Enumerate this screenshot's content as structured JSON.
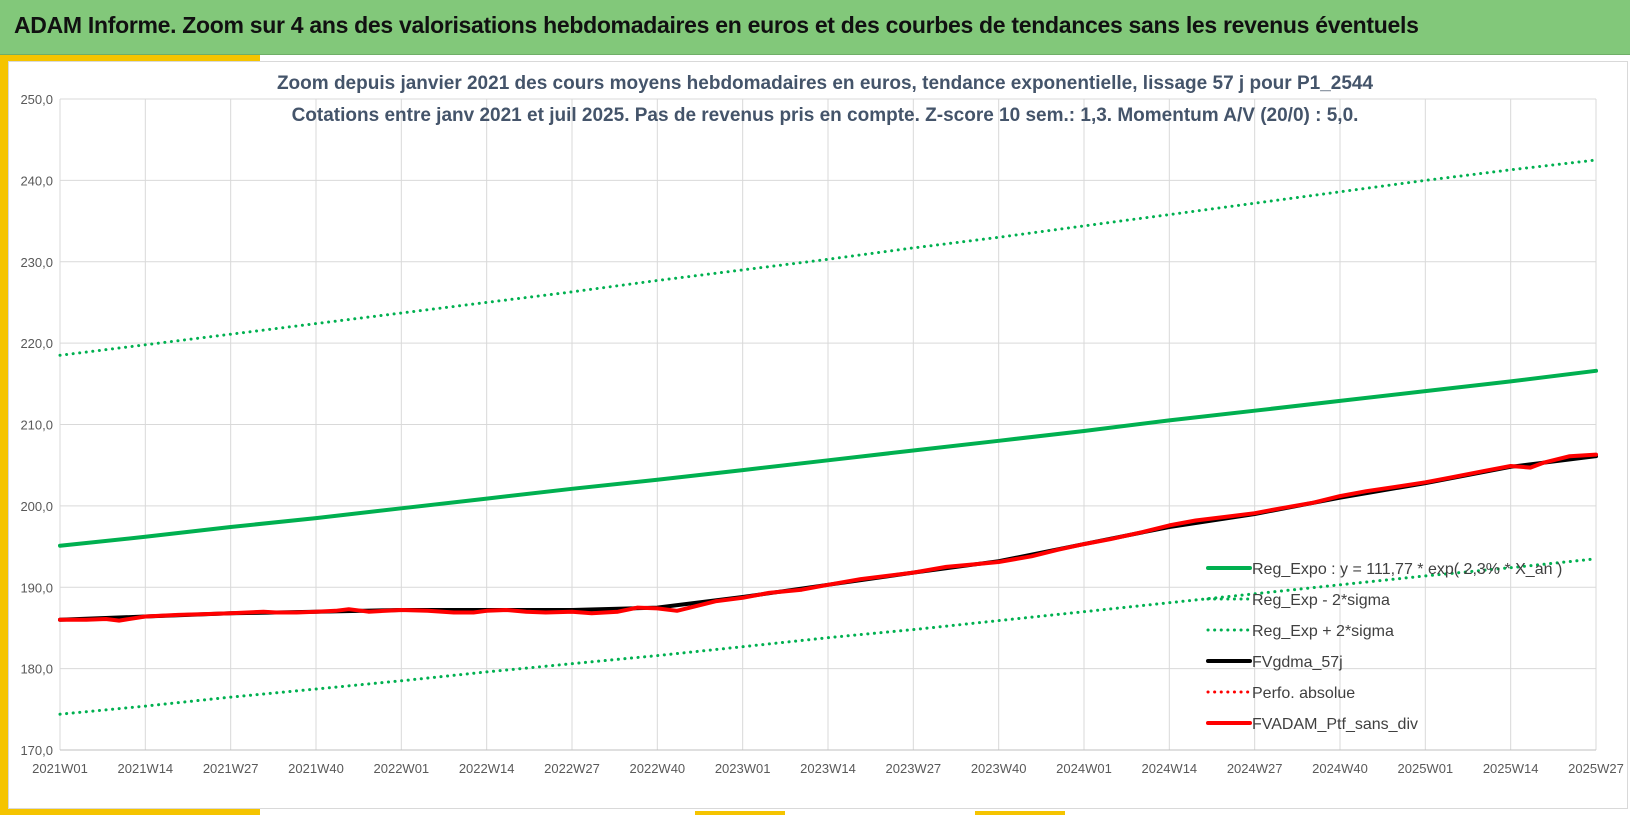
{
  "header": {
    "title": "ADAM Informe. Zoom sur 4 ans des valorisations hebdomadaires en euros et des courbes de tendances sans les revenus éventuels"
  },
  "chart_data": {
    "type": "line",
    "title": "Zoom depuis janvier 2021 des cours moyens hebdomadaires  en euros, tendance exponentielle, lissage 57 j pour P1_2544",
    "subtitle": "Cotations entre janv 2021 et juil 2025. Pas de revenus pris en compte. Z-score 10 sem.: 1,3. Momentum A/V (20/0) : 5,0.",
    "xlabel": "",
    "ylabel": "",
    "x_ticks": [
      "2021W01",
      "2021W14",
      "2021W27",
      "2021W40",
      "2022W01",
      "2022W14",
      "2022W27",
      "2022W40",
      "2023W01",
      "2023W14",
      "2023W27",
      "2023W40",
      "2024W01",
      "2024W14",
      "2024W27",
      "2024W40",
      "2025W01",
      "2025W14",
      "2025W27"
    ],
    "y_ticks": [
      "170,0",
      "180,0",
      "190,0",
      "200,0",
      "210,0",
      "220,0",
      "230,0",
      "240,0",
      "250,0"
    ],
    "ylim": [
      170,
      250
    ],
    "grid": true,
    "legend_position": "bottom-right",
    "series": [
      {
        "name": "Reg_Expo : y = 111,77 * exp( 2,3% * X_an )",
        "color": "#00b050",
        "style": "solid",
        "points": [
          [
            0,
            195.1
          ],
          [
            13,
            196.2
          ],
          [
            26,
            197.4
          ],
          [
            39,
            198.5
          ],
          [
            52,
            199.7
          ],
          [
            65,
            200.9
          ],
          [
            78,
            202.1
          ],
          [
            91,
            203.2
          ],
          [
            104,
            204.4
          ],
          [
            117,
            205.6
          ],
          [
            130,
            206.8
          ],
          [
            143,
            208.0
          ],
          [
            156,
            209.2
          ],
          [
            169,
            210.5
          ],
          [
            182,
            211.7
          ],
          [
            195,
            212.9
          ],
          [
            208,
            214.1
          ],
          [
            221,
            215.3
          ],
          [
            234,
            216.6
          ]
        ]
      },
      {
        "name": "Reg_Exp - 2*sigma",
        "color": "#00b050",
        "style": "dotted",
        "points": [
          [
            0,
            174.4
          ],
          [
            13,
            175.4
          ],
          [
            26,
            176.5
          ],
          [
            39,
            177.5
          ],
          [
            52,
            178.5
          ],
          [
            65,
            179.6
          ],
          [
            78,
            180.6
          ],
          [
            91,
            181.6
          ],
          [
            104,
            182.7
          ],
          [
            117,
            183.8
          ],
          [
            130,
            184.8
          ],
          [
            143,
            185.9
          ],
          [
            156,
            187.0
          ],
          [
            169,
            188.1
          ],
          [
            182,
            189.2
          ],
          [
            195,
            190.3
          ],
          [
            208,
            191.4
          ],
          [
            221,
            192.4
          ],
          [
            234,
            193.5
          ]
        ]
      },
      {
        "name": "Reg_Exp + 2*sigma",
        "color": "#00b050",
        "style": "dotted",
        "points": [
          [
            0,
            218.5
          ],
          [
            13,
            219.8
          ],
          [
            26,
            221.1
          ],
          [
            39,
            222.4
          ],
          [
            52,
            223.7
          ],
          [
            65,
            225.0
          ],
          [
            78,
            226.3
          ],
          [
            91,
            227.7
          ],
          [
            104,
            229.0
          ],
          [
            117,
            230.3
          ],
          [
            130,
            231.7
          ],
          [
            143,
            233.0
          ],
          [
            156,
            234.4
          ],
          [
            169,
            235.8
          ],
          [
            182,
            237.2
          ],
          [
            195,
            238.6
          ],
          [
            208,
            240.0
          ],
          [
            221,
            241.3
          ],
          [
            234,
            242.5
          ]
        ]
      },
      {
        "name": "FVgdma_57j",
        "color": "#000000",
        "style": "solid",
        "points": [
          [
            0,
            186.0
          ],
          [
            13,
            186.4
          ],
          [
            26,
            186.8
          ],
          [
            39,
            187.0
          ],
          [
            52,
            187.2
          ],
          [
            65,
            187.2
          ],
          [
            78,
            187.2
          ],
          [
            91,
            187.5
          ],
          [
            104,
            188.8
          ],
          [
            117,
            190.3
          ],
          [
            130,
            191.8
          ],
          [
            143,
            193.2
          ],
          [
            156,
            195.3
          ],
          [
            169,
            197.4
          ],
          [
            182,
            199.0
          ],
          [
            195,
            201.0
          ],
          [
            208,
            202.8
          ],
          [
            221,
            204.8
          ],
          [
            234,
            206.1
          ]
        ]
      },
      {
        "name": "Perfo. absolue",
        "color": "#ff0000",
        "style": "dotted",
        "points": []
      },
      {
        "name": "FVADAM_Ptf_sans_div",
        "color": "#ff0000",
        "style": "solid",
        "points": [
          [
            0,
            186.0
          ],
          [
            4,
            186.0
          ],
          [
            7,
            186.1
          ],
          [
            9,
            185.9
          ],
          [
            13,
            186.4
          ],
          [
            18,
            186.6
          ],
          [
            22,
            186.7
          ],
          [
            26,
            186.8
          ],
          [
            31,
            187.0
          ],
          [
            33,
            186.9
          ],
          [
            36,
            186.9
          ],
          [
            39,
            187.0
          ],
          [
            42,
            187.1
          ],
          [
            44,
            187.3
          ],
          [
            47,
            187.0
          ],
          [
            52,
            187.2
          ],
          [
            56,
            187.1
          ],
          [
            60,
            186.9
          ],
          [
            63,
            186.9
          ],
          [
            65,
            187.1
          ],
          [
            68,
            187.2
          ],
          [
            71,
            187.0
          ],
          [
            74,
            186.9
          ],
          [
            78,
            187.0
          ],
          [
            81,
            186.8
          ],
          [
            85,
            187.0
          ],
          [
            88,
            187.5
          ],
          [
            91,
            187.4
          ],
          [
            94,
            187.1
          ],
          [
            96,
            187.5
          ],
          [
            100,
            188.3
          ],
          [
            104,
            188.7
          ],
          [
            108,
            189.3
          ],
          [
            113,
            189.7
          ],
          [
            117,
            190.3
          ],
          [
            122,
            191.0
          ],
          [
            126,
            191.4
          ],
          [
            130,
            191.8
          ],
          [
            135,
            192.5
          ],
          [
            139,
            192.8
          ],
          [
            143,
            193.1
          ],
          [
            148,
            193.8
          ],
          [
            152,
            194.6
          ],
          [
            156,
            195.3
          ],
          [
            160,
            195.9
          ],
          [
            165,
            196.8
          ],
          [
            169,
            197.6
          ],
          [
            173,
            198.2
          ],
          [
            178,
            198.7
          ],
          [
            182,
            199.1
          ],
          [
            186,
            199.7
          ],
          [
            191,
            200.4
          ],
          [
            195,
            201.2
          ],
          [
            199,
            201.8
          ],
          [
            204,
            202.4
          ],
          [
            208,
            202.9
          ],
          [
            212,
            203.5
          ],
          [
            217,
            204.3
          ],
          [
            221,
            204.9
          ],
          [
            224,
            204.7
          ],
          [
            226,
            205.3
          ],
          [
            230,
            206.1
          ],
          [
            234,
            206.3
          ]
        ]
      }
    ]
  }
}
